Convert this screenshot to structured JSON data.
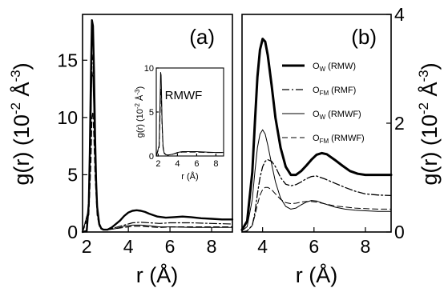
{
  "chart_data": [
    {
      "panel_label": "(a)",
      "type": "line",
      "xlabel": "r (Å)",
      "ylabel": "g(r) (10^-2 Å^-3)",
      "xlim": [
        1.8,
        9.0
      ],
      "ylim": [
        0,
        19
      ],
      "xticks": [
        "2",
        "4",
        "6",
        "8"
      ],
      "yticks": [
        "0",
        "5",
        "10",
        "15"
      ],
      "series": [
        {
          "style": "solid",
          "stroke_width": 2.4,
          "x": [
            1.8,
            2.0,
            2.1,
            2.15,
            2.2,
            2.25,
            2.3,
            2.35,
            2.4,
            2.45,
            2.5,
            2.6,
            2.7,
            2.8,
            3.0,
            3.2,
            3.4,
            3.6,
            3.8,
            4.0,
            4.2,
            4.4,
            4.6,
            4.8,
            5.0,
            5.4,
            5.8,
            6.2,
            6.6,
            7.0,
            7.5,
            8.0,
            8.5,
            9.0
          ],
          "y": [
            0,
            0.1,
            2.5,
            7.0,
            13.5,
            18.5,
            18.0,
            14.0,
            8.5,
            4.5,
            2.2,
            0.7,
            0.3,
            0.2,
            0.2,
            0.4,
            0.7,
            1.0,
            1.4,
            1.7,
            1.85,
            1.9,
            1.85,
            1.75,
            1.6,
            1.35,
            1.25,
            1.3,
            1.35,
            1.3,
            1.2,
            1.15,
            1.1,
            1.1
          ]
        },
        {
          "style": "dashdot",
          "stroke_width": 1.2,
          "x": [
            1.8,
            2.1,
            2.2,
            2.25,
            2.3,
            2.35,
            2.4,
            2.5,
            2.6,
            2.8,
            3.0,
            3.4,
            3.8,
            4.2,
            4.6,
            5.0,
            5.5,
            6.0,
            7.0,
            8.0,
            9.0
          ],
          "y": [
            0,
            2.0,
            10.0,
            15.5,
            15.0,
            11.0,
            6.5,
            2.0,
            0.6,
            0.2,
            0.2,
            0.4,
            0.6,
            0.8,
            0.85,
            0.8,
            0.75,
            0.8,
            0.8,
            0.75,
            0.7
          ]
        },
        {
          "style": "solid",
          "stroke_width": 1.0,
          "x": [
            1.8,
            2.1,
            2.2,
            2.25,
            2.3,
            2.35,
            2.4,
            2.5,
            2.6,
            2.8,
            3.0,
            3.4,
            3.8,
            4.2,
            4.6,
            5.0,
            5.5,
            6.0,
            7.0,
            8.0,
            9.0
          ],
          "y": [
            0,
            2.0,
            9.0,
            14.0,
            13.5,
            10.0,
            6.0,
            1.8,
            0.5,
            0.2,
            0.2,
            0.3,
            0.5,
            0.6,
            0.6,
            0.55,
            0.45,
            0.45,
            0.4,
            0.4,
            0.4
          ]
        },
        {
          "style": "dashed",
          "stroke_width": 1.2,
          "x": [
            1.8,
            2.1,
            2.2,
            2.25,
            2.3,
            2.35,
            2.4,
            2.5,
            2.6,
            2.8,
            3.0,
            3.4,
            3.8,
            4.2,
            4.6,
            5.0,
            5.5,
            6.0,
            7.0,
            8.0,
            9.0
          ],
          "y": [
            0,
            1.5,
            6.0,
            10.0,
            10.5,
            8.0,
            5.0,
            1.5,
            0.5,
            0.2,
            0.2,
            0.3,
            0.4,
            0.5,
            0.5,
            0.45,
            0.4,
            0.45,
            0.45,
            0.45,
            0.45
          ]
        }
      ]
    },
    {
      "panel_label": "RMWF",
      "type": "line",
      "xlabel": "r (Å)",
      "ylabel": "g(r) (10^-2 Å^-3)",
      "xlim": [
        1.8,
        8.8
      ],
      "ylim": [
        0,
        10
      ],
      "xticks": [
        "2",
        "4",
        "6",
        "8"
      ],
      "yticks": [
        "0",
        "5",
        "10"
      ],
      "series": [
        {
          "style": "solid",
          "stroke_width": 1.0,
          "x": [
            1.8,
            2.1,
            2.2,
            2.25,
            2.3,
            2.35,
            2.4,
            2.5,
            2.6,
            2.8,
            3.0,
            3.5,
            4.0,
            4.5,
            5.0,
            6.0,
            7.0,
            8.0,
            8.8
          ],
          "y": [
            0,
            1.2,
            6.5,
            9.5,
            9.2,
            6.8,
            4.0,
            1.2,
            0.4,
            0.15,
            0.1,
            0.2,
            0.4,
            0.5,
            0.5,
            0.5,
            0.45,
            0.4,
            0.4
          ]
        },
        {
          "style": "dashed",
          "stroke_width": 1.0,
          "x": [
            1.8,
            2.1,
            2.2,
            2.25,
            2.3,
            2.35,
            2.4,
            2.5,
            2.6,
            2.8,
            3.0,
            3.5,
            4.0,
            4.5,
            5.0,
            6.0,
            7.0,
            8.0,
            8.8
          ],
          "y": [
            0,
            1.0,
            5.0,
            7.5,
            7.6,
            5.8,
            3.5,
            1.0,
            0.3,
            0.15,
            0.1,
            0.2,
            0.35,
            0.45,
            0.45,
            0.45,
            0.4,
            0.4,
            0.4
          ]
        }
      ]
    },
    {
      "panel_label": "(b)",
      "type": "line",
      "xlabel": "r (Å)",
      "ylabel": "g(r) (10^-2 Å^-3)",
      "xlim": [
        3.2,
        9.0
      ],
      "ylim": [
        0,
        4
      ],
      "xticks": [
        "4",
        "6",
        "8"
      ],
      "yticks": [
        "0",
        "2",
        "4"
      ],
      "legend_position": "right",
      "series": [
        {
          "name": "O_W (RMW)",
          "legend": {
            "main": "O",
            "sub": "W",
            "rest": " (RMW)"
          },
          "style": "solid",
          "stroke_width": 3.0,
          "x": [
            3.2,
            3.4,
            3.6,
            3.7,
            3.8,
            3.9,
            4.0,
            4.1,
            4.2,
            4.35,
            4.5,
            4.7,
            4.9,
            5.1,
            5.3,
            5.5,
            5.7,
            5.9,
            6.1,
            6.3,
            6.5,
            6.8,
            7.1,
            7.4,
            7.7,
            8.0,
            8.3,
            8.6,
            9.0
          ],
          "y": [
            0.04,
            0.2,
            1.1,
            2.0,
            2.85,
            3.35,
            3.55,
            3.5,
            3.25,
            2.7,
            2.1,
            1.55,
            1.2,
            1.05,
            1.05,
            1.12,
            1.22,
            1.33,
            1.42,
            1.45,
            1.43,
            1.33,
            1.22,
            1.12,
            1.07,
            1.05,
            1.05,
            1.05,
            1.05
          ]
        },
        {
          "name": "O_FM (RMF)",
          "legend": {
            "main": "O",
            "sub": "FM",
            "rest": " (RMF)"
          },
          "style": "dashdot",
          "stroke_width": 1.3,
          "x": [
            3.2,
            3.4,
            3.6,
            3.7,
            3.8,
            3.9,
            4.0,
            4.1,
            4.2,
            4.35,
            4.5,
            4.7,
            4.9,
            5.1,
            5.3,
            5.5,
            5.7,
            5.9,
            6.1,
            6.4,
            6.8,
            7.2,
            7.6,
            8.0,
            8.5,
            9.0
          ],
          "y": [
            0,
            0.02,
            0.12,
            0.35,
            0.7,
            1.0,
            1.2,
            1.3,
            1.33,
            1.3,
            1.2,
            1.0,
            0.88,
            0.85,
            0.87,
            0.92,
            0.98,
            1.02,
            1.03,
            0.98,
            0.9,
            0.82,
            0.75,
            0.7,
            0.68,
            0.67
          ]
        },
        {
          "name": "O_W (RMWF)",
          "legend": {
            "main": "O",
            "sub": "W",
            "rest": " (RMWF)"
          },
          "style": "solid",
          "stroke_width": 1.0,
          "x": [
            3.2,
            3.4,
            3.6,
            3.7,
            3.8,
            3.9,
            4.0,
            4.1,
            4.2,
            4.35,
            4.5,
            4.7,
            4.9,
            5.1,
            5.3,
            5.5,
            5.7,
            5.9,
            6.1,
            6.4,
            6.8,
            7.2,
            7.6,
            8.0,
            8.5,
            9.0
          ],
          "y": [
            0.02,
            0.1,
            0.6,
            1.1,
            1.55,
            1.8,
            1.88,
            1.8,
            1.6,
            1.25,
            0.92,
            0.62,
            0.47,
            0.42,
            0.44,
            0.5,
            0.55,
            0.58,
            0.57,
            0.52,
            0.46,
            0.42,
            0.4,
            0.39,
            0.38,
            0.38
          ]
        },
        {
          "name": "O_FM (RMWF)",
          "legend": {
            "main": "O",
            "sub": "FM",
            "rest": " (RMWF)"
          },
          "style": "dashed",
          "stroke_width": 1.0,
          "x": [
            3.2,
            3.4,
            3.6,
            3.7,
            3.8,
            3.9,
            4.0,
            4.1,
            4.2,
            4.35,
            4.5,
            4.7,
            4.9,
            5.1,
            5.3,
            5.5,
            5.7,
            5.9,
            6.1,
            6.4,
            6.8,
            7.2,
            7.6,
            8.0,
            8.5,
            9.0
          ],
          "y": [
            0,
            0.02,
            0.12,
            0.3,
            0.5,
            0.68,
            0.78,
            0.82,
            0.82,
            0.78,
            0.7,
            0.6,
            0.54,
            0.52,
            0.53,
            0.55,
            0.56,
            0.56,
            0.55,
            0.52,
            0.48,
            0.46,
            0.44,
            0.43,
            0.42,
            0.42
          ]
        }
      ]
    }
  ]
}
